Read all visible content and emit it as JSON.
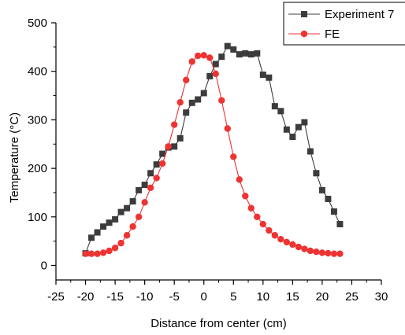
{
  "chart_data": {
    "type": "line",
    "xlabel": "Distance from center (cm)",
    "ylabel": "Temperature (°C)",
    "xlim": [
      -25,
      30
    ],
    "ylim": [
      -30,
      500
    ],
    "x_ticks": [
      -25,
      -20,
      -15,
      -10,
      -5,
      0,
      5,
      10,
      15,
      20,
      25,
      30
    ],
    "y_ticks": [
      0,
      100,
      200,
      300,
      400,
      500
    ],
    "grid": false,
    "legend_position": "top-right",
    "series": [
      {
        "name": "Experiment 7",
        "color": "#3c3c3c",
        "marker": "square",
        "points": [
          [
            -20,
            25
          ],
          [
            -19,
            57
          ],
          [
            -18,
            68
          ],
          [
            -17,
            80
          ],
          [
            -16,
            88
          ],
          [
            -15,
            95
          ],
          [
            -14,
            110
          ],
          [
            -13,
            118
          ],
          [
            -12,
            132
          ],
          [
            -11,
            155
          ],
          [
            -10,
            166
          ],
          [
            -9,
            190
          ],
          [
            -8,
            208
          ],
          [
            -7,
            230
          ],
          [
            -6,
            243
          ],
          [
            -5,
            245
          ],
          [
            -4,
            262
          ],
          [
            -3,
            315
          ],
          [
            -2,
            335
          ],
          [
            -1,
            342
          ],
          [
            0,
            355
          ],
          [
            1,
            390
          ],
          [
            2,
            415
          ],
          [
            3,
            430
          ],
          [
            4,
            452
          ],
          [
            5,
            445
          ],
          [
            6,
            435
          ],
          [
            7,
            437
          ],
          [
            8,
            435
          ],
          [
            9,
            437
          ],
          [
            10,
            393
          ],
          [
            11,
            387
          ],
          [
            12,
            328
          ],
          [
            13,
            318
          ],
          [
            14,
            280
          ],
          [
            15,
            265
          ],
          [
            16,
            285
          ],
          [
            17,
            295
          ],
          [
            18,
            235
          ],
          [
            19,
            190
          ],
          [
            20,
            155
          ],
          [
            21,
            137
          ],
          [
            22,
            111
          ],
          [
            23,
            85
          ]
        ]
      },
      {
        "name": "FE",
        "color": "#ee3333",
        "marker": "circle",
        "points": [
          [
            -20,
            24
          ],
          [
            -19,
            24
          ],
          [
            -18,
            24
          ],
          [
            -17,
            26
          ],
          [
            -16,
            30
          ],
          [
            -15,
            36
          ],
          [
            -14,
            46
          ],
          [
            -13,
            62
          ],
          [
            -12,
            80
          ],
          [
            -11,
            100
          ],
          [
            -10,
            130
          ],
          [
            -9,
            160
          ],
          [
            -8,
            180
          ],
          [
            -7,
            210
          ],
          [
            -6,
            245
          ],
          [
            -5,
            290
          ],
          [
            -4,
            336
          ],
          [
            -3,
            382
          ],
          [
            -2,
            420
          ],
          [
            -1,
            432
          ],
          [
            0,
            433
          ],
          [
            1,
            428
          ],
          [
            2,
            395
          ],
          [
            3,
            340
          ],
          [
            4,
            282
          ],
          [
            5,
            224
          ],
          [
            6,
            177
          ],
          [
            7,
            143
          ],
          [
            8,
            118
          ],
          [
            9,
            100
          ],
          [
            10,
            85
          ],
          [
            11,
            72
          ],
          [
            12,
            62
          ],
          [
            13,
            54
          ],
          [
            14,
            48
          ],
          [
            15,
            43
          ],
          [
            16,
            38
          ],
          [
            17,
            34
          ],
          [
            18,
            30
          ],
          [
            19,
            28
          ],
          [
            20,
            26
          ],
          [
            21,
            25
          ],
          [
            22,
            24
          ],
          [
            23,
            24
          ]
        ]
      }
    ]
  }
}
